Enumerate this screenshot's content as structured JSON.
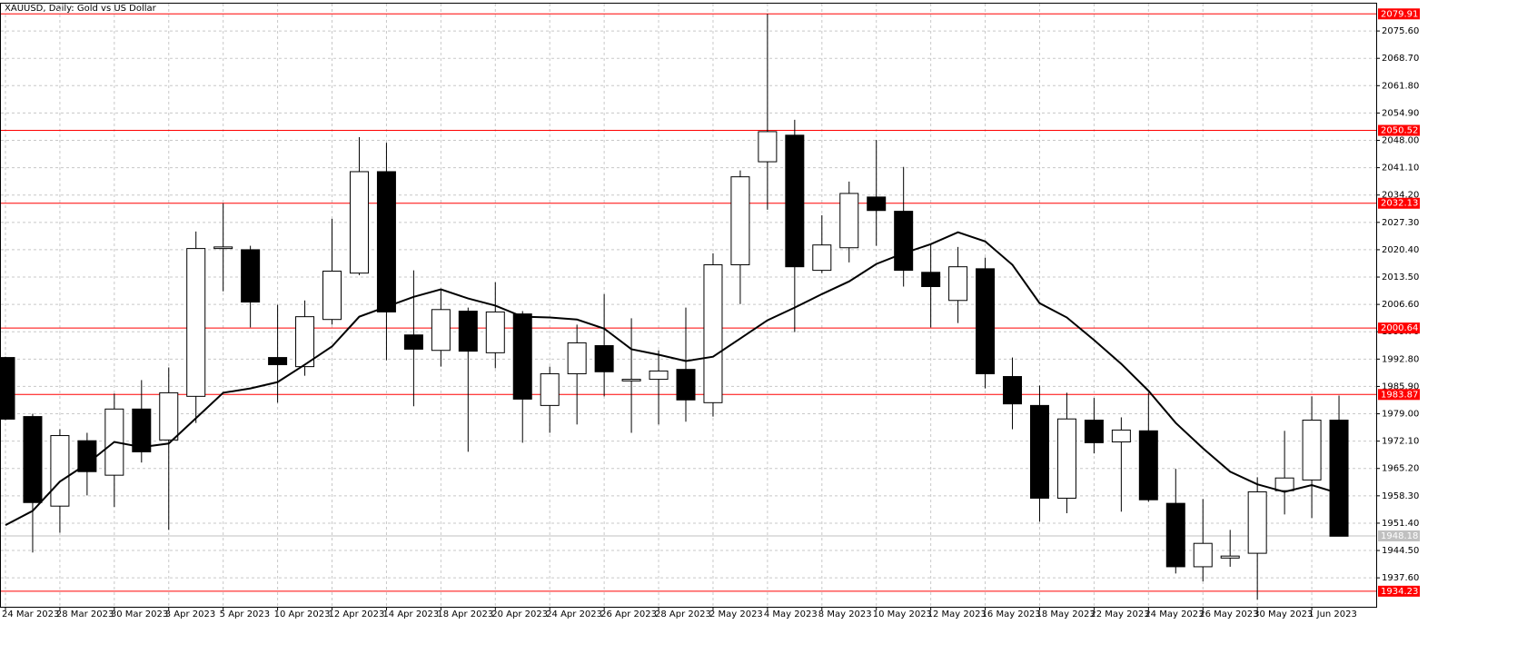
{
  "chart_data": {
    "type": "candlestick",
    "title": "XAUUSD, Daily:  Gold vs US Dollar",
    "categories": [
      "24 Mar 2023",
      null,
      "28 Mar 2023",
      null,
      "30 Mar 2023",
      null,
      "3 Apr 2023",
      null,
      "5 Apr 2023",
      null,
      "10 Apr 2023",
      null,
      "12 Apr 2023",
      null,
      "14 Apr 2023",
      null,
      "18 Apr 2023",
      null,
      "20 Apr 2023",
      null,
      "24 Apr 2023",
      null,
      "26 Apr 2023",
      null,
      "28 Apr 2023",
      null,
      "2 May 2023",
      null,
      "4 May 2023",
      null,
      "8 May 2023",
      null,
      "10 May 2023",
      null,
      "12 May 2023",
      null,
      "16 May 2023",
      null,
      "18 May 2023",
      null,
      "22 May 2023",
      null,
      "24 May 2023",
      null,
      "26 May 2023",
      null,
      "30 May 2023",
      null,
      "1 Jun 2023",
      null
    ],
    "open": [
      1993.2,
      1978.3,
      1955.7,
      1972.2,
      1963.5,
      1980.2,
      1972.4,
      1983.4,
      2020.7,
      2020.4,
      1993.2,
      1990.9,
      2002.8,
      2014.5,
      2040.1,
      1998.9,
      1995.0,
      2004.9,
      1994.4,
      2004.2,
      1981.1,
      1989.1,
      1996.2,
      1987.3,
      1987.7,
      1990.2,
      1981.8,
      2016.6,
      2042.6,
      2049.3,
      2015.2,
      2020.9,
      2033.7,
      2030.1,
      2014.7,
      2007.6,
      2015.6,
      1988.4,
      1981.1,
      1957.7,
      1977.4,
      1971.9,
      1974.7,
      1956.4,
      1940.4,
      1942.6,
      1943.8,
      1959.6,
      1962.3,
      1977.4
    ],
    "high": [
      1993.4,
      1979.0,
      1975.1,
      1974.2,
      1984.1,
      1987.5,
      1990.7,
      2025.0,
      2032.1,
      2021.4,
      2006.5,
      2007.6,
      2028.2,
      2048.8,
      2047.4,
      2015.2,
      2010.4,
      2005.8,
      2012.2,
      2004.9,
      1990.9,
      2001.5,
      2009.2,
      2003.1,
      1995.0,
      2005.8,
      2019.5,
      2040.4,
      2079.9,
      2053.2,
      2029.1,
      2037.6,
      2048.1,
      2041.3,
      2022.0,
      2021.1,
      2018.4,
      1993.2,
      1986.1,
      1984.3,
      1983.0,
      1978.1,
      1984.3,
      1965.1,
      1957.5,
      1949.7,
      1963.0,
      1974.7,
      1983.4,
      1983.6
    ],
    "low": [
      1977.4,
      1944.0,
      1949.0,
      1958.4,
      1955.5,
      1966.7,
      1949.7,
      1976.7,
      2009.9,
      2000.8,
      1981.8,
      1988.6,
      2001.5,
      2014.0,
      1992.5,
      1980.9,
      1990.9,
      1969.4,
      1990.5,
      1971.7,
      1974.2,
      1976.3,
      1983.4,
      1974.2,
      1976.3,
      1977.0,
      1978.3,
      2006.7,
      2030.5,
      1999.6,
      2014.5,
      2017.2,
      2021.4,
      2011.1,
      2000.8,
      2001.9,
      1985.4,
      1975.1,
      1951.8,
      1953.9,
      1969.0,
      1954.3,
      1956.8,
      1938.7,
      1936.7,
      1940.4,
      1932.1,
      1953.6,
      1952.7,
      1948.1
    ],
    "close": [
      1977.65,
      1956.6,
      1973.5,
      1964.4,
      1980.2,
      1969.4,
      1984.3,
      2020.7,
      2021.1,
      2007.2,
      1991.4,
      2003.5,
      2015.0,
      2040.1,
      2004.7,
      1995.3,
      2005.3,
      1994.8,
      2004.7,
      1982.7,
      1989.1,
      1996.9,
      1989.6,
      1987.7,
      1989.8,
      1982.5,
      2016.6,
      2038.8,
      2050.2,
      2016.1,
      2021.6,
      2034.6,
      2030.3,
      2015.2,
      2011.1,
      2016.1,
      1989.1,
      1981.5,
      1957.7,
      1977.7,
      1971.7,
      1974.9,
      1957.3,
      1940.4,
      1946.3,
      1943.1,
      1959.3,
      1962.8,
      1977.4,
      1948.1
    ],
    "ma": {
      "color": "#000000",
      "values": [
        1950.9,
        1954.5,
        1961.9,
        1966.4,
        1971.9,
        1970.6,
        1971.5,
        1977.9,
        1984.3,
        1985.4,
        1987.0,
        1991.4,
        1996.0,
        2003.5,
        2006.0,
        2008.5,
        2010.4,
        2008.1,
        2006.3,
        2003.5,
        2003.3,
        2002.8,
        2000.5,
        1995.3,
        1993.9,
        1992.3,
        1993.4,
        1998.0,
        2002.6,
        2005.8,
        2009.2,
        2012.4,
        2016.8,
        2019.5,
        2021.8,
        2024.8,
        2022.5,
        2016.6,
        2006.9,
        2003.3,
        1997.6,
        1991.6,
        1984.8,
        1976.7,
        1970.3,
        1964.4,
        1961.2,
        1959.3,
        1961.0,
        1958.9
      ]
    },
    "up_color": "#ffffff",
    "down_color": "#000000",
    "levels": [
      {
        "value": 2079.91,
        "color": "#ff0000"
      },
      {
        "value": 2050.52,
        "color": "#ff0000"
      },
      {
        "value": 2032.13,
        "color": "#ff0000"
      },
      {
        "value": 2000.64,
        "color": "#ff0000"
      },
      {
        "value": 1983.87,
        "color": "#ff0000"
      },
      {
        "value": 1948.18,
        "color": "#c0c0c0"
      },
      {
        "value": 1934.23,
        "color": "#ff0000"
      }
    ],
    "ylim": [
      1930.3,
      2082.5
    ],
    "yticks": [
      {
        "value": 2075.6,
        "label": "2075.60"
      },
      {
        "value": 2068.7,
        "label": "2068.70"
      },
      {
        "value": 2061.8,
        "label": "2061.80"
      },
      {
        "value": 2054.9,
        "label": "2054.90"
      },
      {
        "value": 2048.0,
        "label": "2048.00"
      },
      {
        "value": 2041.1,
        "label": "2041.10"
      },
      {
        "value": 2034.2,
        "label": "2034.20"
      },
      {
        "value": 2027.3,
        "label": "2027.30"
      },
      {
        "value": 2020.4,
        "label": "2020.40"
      },
      {
        "value": 2013.5,
        "label": "2013.50"
      },
      {
        "value": 2006.6,
        "label": "2006.60"
      },
      {
        "value": 1999.7,
        "label": "1999.70"
      },
      {
        "value": 1992.8,
        "label": "1992.80"
      },
      {
        "value": 1985.9,
        "label": "1985.90"
      },
      {
        "value": 1979.0,
        "label": "1979.00"
      },
      {
        "value": 1972.1,
        "label": "1972.10"
      },
      {
        "value": 1965.2,
        "label": "1965.20"
      },
      {
        "value": 1958.3,
        "label": "1958.30"
      },
      {
        "value": 1951.4,
        "label": "1951.40"
      },
      {
        "value": 1944.5,
        "label": "1944.50"
      },
      {
        "value": 1937.6,
        "label": "1937.60"
      }
    ],
    "grid": true
  }
}
